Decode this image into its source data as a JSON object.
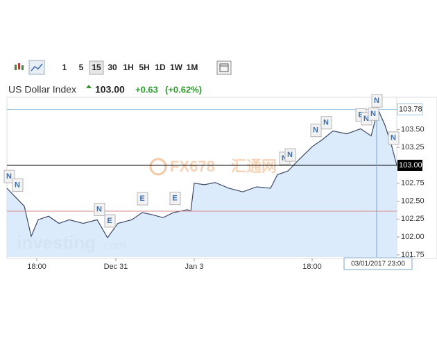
{
  "toolbar": {
    "intervals": [
      "1",
      "5",
      "15",
      "30",
      "1H",
      "5H",
      "1D",
      "1W",
      "1M"
    ],
    "selected": 2
  },
  "header": {
    "name": "US Dollar Index",
    "price": "103.00",
    "change": "+0.63",
    "change_percent": "(+0.62%)"
  },
  "watermarks": {
    "investing": "investing",
    "dotcom": ".com",
    "fx": "FX678",
    "cn": "汇通网"
  },
  "chart_data": {
    "type": "area",
    "color": "#3b4766",
    "fill": "#d5e8fa",
    "x": [
      0,
      10,
      25,
      35,
      45,
      60,
      75,
      90,
      110,
      130,
      145,
      160,
      180,
      195,
      210,
      225,
      240,
      260,
      265,
      270,
      285,
      300,
      320,
      340,
      360,
      380,
      390,
      405,
      420,
      440,
      455,
      470,
      490,
      510,
      525,
      535,
      545,
      555,
      562
    ],
    "values": [
      102.68,
      102.58,
      102.43,
      102.01,
      102.24,
      102.29,
      102.19,
      102.24,
      102.19,
      102.24,
      101.99,
      102.19,
      102.24,
      102.34,
      102.31,
      102.27,
      102.34,
      102.38,
      102.36,
      102.75,
      102.73,
      102.76,
      102.68,
      102.63,
      102.7,
      102.68,
      102.87,
      102.92,
      103.07,
      103.26,
      103.36,
      103.48,
      103.44,
      103.51,
      103.41,
      103.78,
      103.56,
      103.26,
      103.0
    ],
    "xlim": [
      0,
      562
    ],
    "xticks": [
      {
        "value": 43,
        "label": "18:00"
      },
      {
        "value": 157,
        "label": "Dec 31"
      },
      {
        "value": 270,
        "label": "Jan 3"
      },
      {
        "value": 440,
        "label": "18:00"
      }
    ],
    "ylim": [
      101.72,
      103.95
    ],
    "yticks": [
      {
        "value": 103.5,
        "label": "103.50"
      },
      {
        "value": 103.25,
        "label": "103.25"
      },
      {
        "value": 102.75,
        "label": "102.75"
      },
      {
        "value": 102.5,
        "label": "102.50"
      },
      {
        "value": 102.25,
        "label": "102.25"
      },
      {
        "value": 102,
        "label": "102.00"
      },
      {
        "value": 101.75,
        "label": "101.75"
      }
    ],
    "high_line": {
      "value": 103.78,
      "label": "103.78",
      "color": "#9cc3e0"
    },
    "last_line": {
      "value": 103,
      "label": "103.00",
      "color": "#000000"
    },
    "low_line": {
      "value": 102.36,
      "color": "#d98b8b"
    },
    "crosshair": {
      "x": 533,
      "label": "03/01/2017 23:00"
    },
    "events": [
      {
        "label": "N",
        "x": 3
      },
      {
        "label": "N",
        "x": 15
      },
      {
        "label": "N",
        "x": 133
      },
      {
        "label": "E",
        "x": 148
      },
      {
        "label": "E",
        "x": 195
      },
      {
        "label": "E",
        "x": 242
      },
      {
        "label": "N",
        "x": 400
      },
      {
        "label": "N",
        "x": 408
      },
      {
        "label": "N",
        "x": 445
      },
      {
        "label": "N",
        "x": 460
      },
      {
        "label": "E",
        "x": 510
      },
      {
        "label": "N",
        "x": 518
      },
      {
        "label": "N",
        "x": 528
      },
      {
        "label": "N",
        "x": 533
      },
      {
        "label": "N",
        "x": 557
      }
    ]
  }
}
